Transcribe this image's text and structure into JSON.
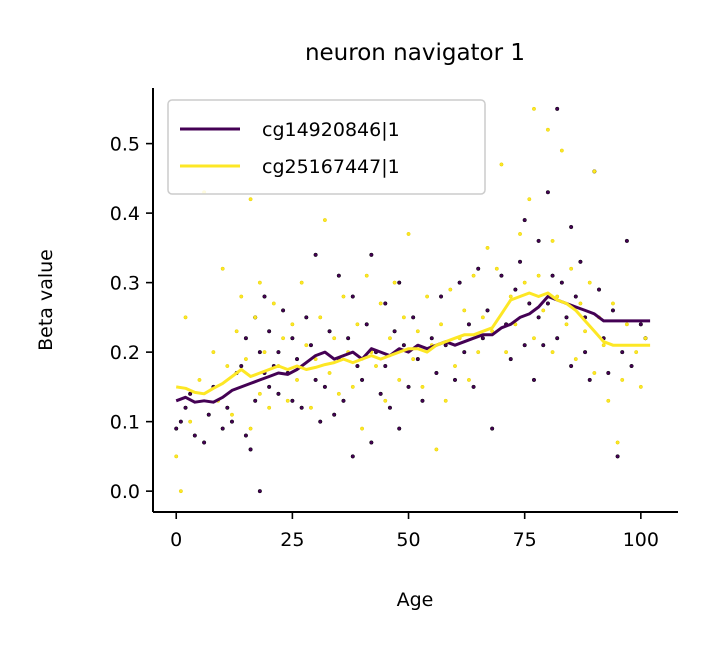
{
  "chart_data": {
    "type": "scatter",
    "title": "neuron navigator 1",
    "xlabel": "Age",
    "ylabel": "Beta value",
    "xlim": [
      -5,
      108
    ],
    "ylim": [
      -0.03,
      0.58
    ],
    "xticks": [
      0,
      25,
      50,
      75,
      100
    ],
    "xtick_labels": [
      "0",
      "25",
      "50",
      "75",
      "100"
    ],
    "yticks": [
      0.0,
      0.1,
      0.2,
      0.3,
      0.4,
      0.5
    ],
    "ytick_labels": [
      "0.0",
      "0.1",
      "0.2",
      "0.3",
      "0.4",
      "0.5"
    ],
    "legend_position": "top-left",
    "grid": false,
    "series": [
      {
        "name": "cg14920846|1",
        "color": "#440154",
        "trend": {
          "x": [
            0,
            2,
            4,
            6,
            8,
            10,
            12,
            14,
            16,
            18,
            20,
            22,
            24,
            26,
            28,
            30,
            32,
            34,
            36,
            38,
            40,
            42,
            44,
            46,
            48,
            50,
            52,
            54,
            56,
            58,
            60,
            62,
            64,
            66,
            68,
            70,
            72,
            74,
            76,
            78,
            80,
            82,
            84,
            86,
            88,
            90,
            92,
            94,
            96,
            98,
            100,
            102
          ],
          "y": [
            0.13,
            0.135,
            0.128,
            0.13,
            0.128,
            0.135,
            0.145,
            0.15,
            0.155,
            0.16,
            0.165,
            0.17,
            0.168,
            0.175,
            0.185,
            0.195,
            0.2,
            0.19,
            0.195,
            0.2,
            0.19,
            0.205,
            0.2,
            0.195,
            0.205,
            0.2,
            0.21,
            0.205,
            0.21,
            0.215,
            0.21,
            0.215,
            0.22,
            0.225,
            0.225,
            0.235,
            0.24,
            0.25,
            0.255,
            0.265,
            0.28,
            0.275,
            0.27,
            0.265,
            0.26,
            0.255,
            0.245,
            0.245,
            0.245,
            0.245,
            0.245,
            0.245
          ]
        },
        "points": {
          "x": [
            0,
            1,
            2,
            3,
            4,
            6,
            7,
            8,
            10,
            11,
            12,
            13,
            14,
            15,
            15,
            16,
            17,
            17,
            18,
            18,
            19,
            19,
            20,
            20,
            21,
            22,
            22,
            23,
            24,
            25,
            25,
            26,
            27,
            28,
            29,
            30,
            30,
            31,
            32,
            33,
            34,
            35,
            35,
            36,
            37,
            38,
            38,
            39,
            40,
            41,
            42,
            42,
            43,
            44,
            45,
            45,
            46,
            47,
            48,
            48,
            49,
            50,
            51,
            52,
            53,
            55,
            56,
            57,
            58,
            60,
            61,
            62,
            63,
            64,
            65,
            66,
            67,
            68,
            70,
            71,
            72,
            73,
            74,
            75,
            75,
            76,
            77,
            78,
            78,
            79,
            80,
            80,
            81,
            82,
            82,
            83,
            84,
            85,
            85,
            86,
            87,
            88,
            88,
            89,
            90,
            91,
            92,
            93,
            94,
            95,
            96,
            97,
            98,
            100,
            101
          ],
          "y": [
            0.09,
            0.1,
            0.12,
            0.14,
            0.08,
            0.07,
            0.11,
            0.15,
            0.09,
            0.12,
            0.1,
            0.17,
            0.18,
            0.08,
            0.22,
            0.06,
            0.25,
            0.13,
            0.0,
            0.2,
            0.17,
            0.28,
            0.23,
            0.15,
            0.18,
            0.14,
            0.2,
            0.26,
            0.17,
            0.13,
            0.22,
            0.19,
            0.12,
            0.25,
            0.21,
            0.34,
            0.16,
            0.1,
            0.15,
            0.23,
            0.11,
            0.19,
            0.31,
            0.13,
            0.22,
            0.05,
            0.28,
            0.18,
            0.16,
            0.24,
            0.07,
            0.34,
            0.2,
            0.14,
            0.18,
            0.27,
            0.12,
            0.23,
            0.3,
            0.09,
            0.21,
            0.15,
            0.25,
            0.19,
            0.13,
            0.22,
            0.17,
            0.28,
            0.21,
            0.16,
            0.3,
            0.2,
            0.24,
            0.15,
            0.32,
            0.22,
            0.26,
            0.09,
            0.31,
            0.24,
            0.19,
            0.29,
            0.33,
            0.21,
            0.39,
            0.27,
            0.16,
            0.25,
            0.36,
            0.21,
            0.43,
            0.27,
            0.31,
            0.55,
            0.22,
            0.3,
            0.25,
            0.18,
            0.38,
            0.28,
            0.33,
            0.2,
            0.25,
            0.16,
            0.46,
            0.29,
            0.22,
            0.17,
            0.26,
            0.05,
            0.2,
            0.36,
            0.18,
            0.24,
            0.22
          ]
        }
      },
      {
        "name": "cg25167447|1",
        "color": "#fde725",
        "trend": {
          "x": [
            0,
            2,
            4,
            6,
            8,
            10,
            12,
            14,
            16,
            18,
            20,
            22,
            24,
            26,
            28,
            30,
            32,
            34,
            36,
            38,
            40,
            42,
            44,
            46,
            48,
            50,
            52,
            54,
            56,
            58,
            60,
            62,
            64,
            66,
            68,
            70,
            72,
            74,
            76,
            78,
            80,
            82,
            84,
            86,
            88,
            90,
            92,
            94,
            96,
            98,
            100,
            102
          ],
          "y": [
            0.15,
            0.148,
            0.142,
            0.14,
            0.148,
            0.155,
            0.165,
            0.175,
            0.165,
            0.17,
            0.175,
            0.18,
            0.175,
            0.18,
            0.175,
            0.178,
            0.182,
            0.185,
            0.19,
            0.185,
            0.19,
            0.195,
            0.19,
            0.195,
            0.2,
            0.205,
            0.205,
            0.2,
            0.21,
            0.215,
            0.22,
            0.225,
            0.225,
            0.23,
            0.235,
            0.255,
            0.275,
            0.28,
            0.285,
            0.28,
            0.285,
            0.275,
            0.27,
            0.26,
            0.245,
            0.23,
            0.215,
            0.21,
            0.21,
            0.21,
            0.21,
            0.21
          ]
        },
        "points": {
          "x": [
            0,
            1,
            2,
            3,
            5,
            6,
            8,
            9,
            10,
            11,
            12,
            13,
            14,
            15,
            16,
            16,
            17,
            18,
            18,
            19,
            20,
            21,
            22,
            23,
            24,
            25,
            26,
            27,
            28,
            29,
            30,
            31,
            32,
            33,
            34,
            35,
            36,
            37,
            38,
            39,
            40,
            41,
            42,
            43,
            44,
            45,
            46,
            47,
            48,
            49,
            50,
            51,
            52,
            53,
            54,
            55,
            56,
            57,
            58,
            59,
            60,
            61,
            62,
            63,
            64,
            65,
            66,
            67,
            68,
            69,
            70,
            71,
            72,
            73,
            74,
            75,
            76,
            77,
            77,
            78,
            79,
            80,
            81,
            81,
            82,
            83,
            84,
            85,
            86,
            87,
            88,
            89,
            90,
            90,
            91,
            92,
            93,
            94,
            95,
            96,
            97,
            99,
            100,
            101
          ],
          "y": [
            0.05,
            0.0,
            0.25,
            0.1,
            0.16,
            0.43,
            0.2,
            0.13,
            0.32,
            0.18,
            0.11,
            0.23,
            0.28,
            0.19,
            0.42,
            0.09,
            0.25,
            0.14,
            0.3,
            0.2,
            0.12,
            0.27,
            0.18,
            0.22,
            0.13,
            0.24,
            0.16,
            0.3,
            0.21,
            0.12,
            0.19,
            0.25,
            0.39,
            0.17,
            0.22,
            0.14,
            0.28,
            0.2,
            0.15,
            0.24,
            0.09,
            0.31,
            0.2,
            0.18,
            0.27,
            0.13,
            0.22,
            0.3,
            0.16,
            0.25,
            0.37,
            0.19,
            0.23,
            0.15,
            0.28,
            0.21,
            0.06,
            0.24,
            0.13,
            0.29,
            0.18,
            0.22,
            0.26,
            0.16,
            0.31,
            0.2,
            0.25,
            0.35,
            0.23,
            0.32,
            0.47,
            0.2,
            0.28,
            0.24,
            0.37,
            0.3,
            0.42,
            0.22,
            0.55,
            0.31,
            0.26,
            0.52,
            0.36,
            0.2,
            0.28,
            0.49,
            0.24,
            0.32,
            0.19,
            0.27,
            0.23,
            0.3,
            0.46,
            0.17,
            0.25,
            0.21,
            0.13,
            0.27,
            0.07,
            0.16,
            0.24,
            0.2,
            0.15,
            0.22
          ]
        }
      }
    ]
  }
}
